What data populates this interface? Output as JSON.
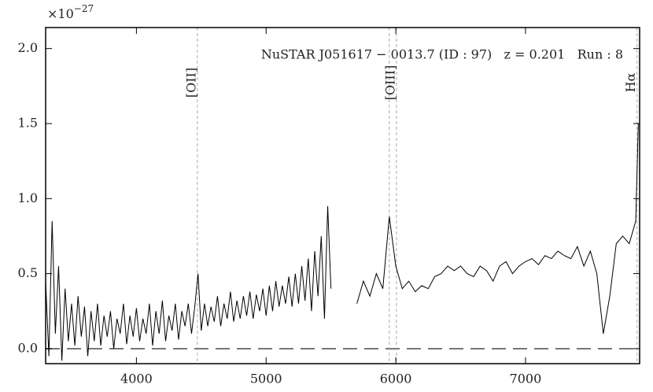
{
  "chart_data": {
    "type": "line",
    "annotation": "NuSTAR J051617 − 0013.7 (ID : 97)   z = 0.201   Run : 8",
    "y_multiplier": "×10",
    "y_exponent": "−27",
    "xlim": [
      3300,
      7880
    ],
    "ylim": [
      -0.1,
      2.14
    ],
    "xticks": [
      4000,
      5000,
      6000,
      7000
    ],
    "yticks": [
      {
        "value": 0,
        "label": "0.0"
      },
      0.5,
      {
        "value": 1,
        "label": "1.0"
      },
      1.5,
      {
        "value": 2,
        "label": "2.0"
      }
    ],
    "zero_line": 0,
    "emission_lines": [
      {
        "label": "[OII]",
        "x": [
          4470
        ]
      },
      {
        "label": "[OIII]",
        "x": [
          5950,
          6005
        ]
      },
      {
        "label": "Hα",
        "x": [
          7860
        ]
      }
    ],
    "series": [
      {
        "color": "#000000",
        "x": [
          3300,
          3325,
          3350,
          3375,
          3400,
          3425,
          3450,
          3475,
          3500,
          3525,
          3550,
          3575,
          3600,
          3625,
          3650,
          3675,
          3700,
          3725,
          3750,
          3775,
          3800,
          3825,
          3850,
          3875,
          3900,
          3925,
          3950,
          3975,
          4000,
          4025,
          4050,
          4075,
          4100,
          4125,
          4150,
          4175,
          4200,
          4225,
          4250,
          4275,
          4300,
          4325,
          4350,
          4375,
          4400,
          4425,
          4450,
          4475,
          4500,
          4525,
          4550,
          4575,
          4600,
          4625,
          4650,
          4675,
          4700,
          4725,
          4750,
          4775,
          4800,
          4825,
          4850,
          4875,
          4900,
          4925,
          4950,
          4975,
          5000,
          5025,
          5050,
          5075,
          5100,
          5125,
          5150,
          5175,
          5200,
          5225,
          5250,
          5275,
          5300,
          5325,
          5350,
          5375,
          5400,
          5425,
          5450,
          5475,
          5500,
          5600,
          5700,
          5750,
          5800,
          5850,
          5900,
          5950,
          6000,
          6050,
          6100,
          6150,
          6200,
          6250,
          6300,
          6350,
          6400,
          6450,
          6500,
          6550,
          6600,
          6650,
          6700,
          6750,
          6800,
          6850,
          6900,
          6950,
          7000,
          7050,
          7100,
          7150,
          7200,
          7250,
          7300,
          7350,
          7400,
          7450,
          7500,
          7550,
          7600,
          7650,
          7700,
          7750,
          7800,
          7850,
          7870
        ],
        "values": [
          0.45,
          -0.05,
          0.85,
          0.1,
          0.55,
          -0.08,
          0.4,
          0.05,
          0.3,
          0.02,
          0.35,
          0.08,
          0.28,
          -0.05,
          0.25,
          0.05,
          0.3,
          0.02,
          0.22,
          0.08,
          0.25,
          0.0,
          0.2,
          0.1,
          0.3,
          0.03,
          0.22,
          0.08,
          0.27,
          0.05,
          0.2,
          0.1,
          0.3,
          0.02,
          0.25,
          0.1,
          0.32,
          0.05,
          0.22,
          0.12,
          0.3,
          0.06,
          0.25,
          0.15,
          0.3,
          0.1,
          0.28,
          0.5,
          0.12,
          0.3,
          0.15,
          0.28,
          0.18,
          0.35,
          0.15,
          0.3,
          0.2,
          0.38,
          0.18,
          0.32,
          0.2,
          0.35,
          0.22,
          0.38,
          0.2,
          0.36,
          0.25,
          0.4,
          0.22,
          0.42,
          0.25,
          0.45,
          0.28,
          0.42,
          0.3,
          0.48,
          0.28,
          0.5,
          0.3,
          0.55,
          0.32,
          0.6,
          0.25,
          0.65,
          0.35,
          0.75,
          0.2,
          0.95,
          0.4,
          null,
          0.3,
          0.45,
          0.35,
          0.5,
          0.4,
          0.88,
          0.55,
          0.4,
          0.45,
          0.38,
          0.42,
          0.4,
          0.48,
          0.5,
          0.55,
          0.52,
          0.55,
          0.5,
          0.48,
          0.55,
          0.52,
          0.45,
          0.55,
          0.58,
          0.5,
          0.55,
          0.58,
          0.6,
          0.56,
          0.62,
          0.6,
          0.65,
          0.62,
          0.6,
          0.68,
          0.55,
          0.65,
          0.5,
          0.1,
          0.35,
          0.7,
          0.75,
          0.7,
          0.85,
          1.5
        ]
      }
    ]
  }
}
